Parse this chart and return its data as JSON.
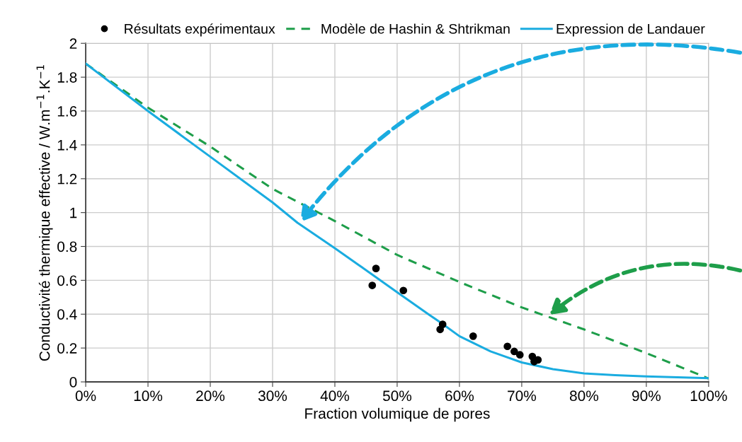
{
  "chart_data": {
    "type": "line",
    "xlabel": "Fraction volumique de pores",
    "ylabel": "Conductivité thermique effective / W.m$^{−1}$.K$^{−1}$",
    "xlim": [
      0,
      100
    ],
    "ylim": [
      0,
      2
    ],
    "xticks": [
      {
        "value": 0,
        "label": "0%"
      },
      {
        "value": 10,
        "label": "10%"
      },
      {
        "value": 20,
        "label": "20%"
      },
      {
        "value": 30,
        "label": "30%"
      },
      {
        "value": 40,
        "label": "40%"
      },
      {
        "value": 50,
        "label": "50%"
      },
      {
        "value": 60,
        "label": "60%"
      },
      {
        "value": 70,
        "label": "70%"
      },
      {
        "value": 80,
        "label": "80%"
      },
      {
        "value": 90,
        "label": "90%"
      },
      {
        "value": 100,
        "label": "100%"
      }
    ],
    "yticks": [
      0,
      0.2,
      0.4,
      0.6,
      0.8,
      1,
      1.2,
      1.4,
      1.6,
      1.8,
      2
    ],
    "grid": true,
    "legend": "top",
    "series": [
      {
        "name": "Résultats expérimentaux",
        "type": "scatter",
        "marker": "circle",
        "color": "#000000",
        "x": [
          46.0,
          46.6,
          51.0,
          56.9,
          57.3,
          62.2,
          67.7,
          68.8,
          69.7,
          71.7,
          72.0,
          72.6
        ],
        "values": [
          0.57,
          0.67,
          0.54,
          0.31,
          0.34,
          0.27,
          0.21,
          0.18,
          0.16,
          0.15,
          0.12,
          0.13
        ]
      },
      {
        "name": "Modèle de Hashin & Shtrikman",
        "type": "line",
        "line_style": "dashed",
        "color": "#1e9e4a",
        "x": [
          0,
          10,
          20,
          30,
          40,
          50,
          60,
          70,
          80,
          90,
          100
        ],
        "values": [
          1.88,
          1.62,
          1.39,
          1.14,
          0.95,
          0.75,
          0.59,
          0.44,
          0.31,
          0.17,
          0.02
        ]
      },
      {
        "name": "Expression de Landauer",
        "type": "line",
        "line_style": "solid",
        "color": "#1aace0",
        "x": [
          0,
          10,
          20,
          30,
          34,
          40,
          45,
          50,
          55,
          57,
          60,
          65,
          70,
          75,
          80,
          85,
          90,
          95,
          100
        ],
        "values": [
          1.88,
          1.6,
          1.33,
          1.06,
          0.94,
          0.79,
          0.66,
          0.53,
          0.4,
          0.35,
          0.27,
          0.18,
          0.115,
          0.075,
          0.05,
          0.04,
          0.032,
          0.027,
          0.022
        ]
      }
    ]
  }
}
